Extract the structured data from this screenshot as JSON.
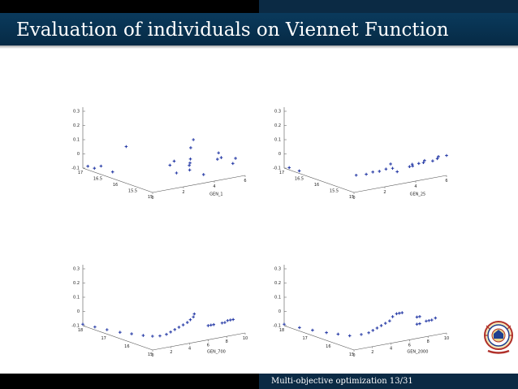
{
  "header": {
    "title": "Evaluation of individuals on Viennet Function"
  },
  "footer": {
    "text": "Multi-objective optimization 13/31"
  },
  "logo": {
    "icon": "institution-seal-icon"
  },
  "colors": {
    "marker": "#2b3fa8",
    "title_bar": "#0a3a5c"
  },
  "chart_data": [
    {
      "type": "scatter",
      "projection": "3d",
      "xlabel": "GEN_1",
      "x_ticks": [
        "0",
        "2",
        "4",
        "6"
      ],
      "y_ticks": [
        "17",
        "16.5",
        "16",
        "15.5",
        "15"
      ],
      "z_ticks": [
        "0.3",
        "0.2",
        "0.1",
        "0",
        "-0.1"
      ],
      "points": [
        [
          0.1,
          16.9,
          -0.08
        ],
        [
          0.3,
          16.8,
          -0.09
        ],
        [
          0.5,
          16.7,
          -0.07
        ],
        [
          0.8,
          16.5,
          -0.1
        ],
        [
          1.0,
          16.2,
          0.1
        ],
        [
          1.8,
          15.3,
          0.03
        ],
        [
          2.0,
          15.2,
          -0.02
        ],
        [
          2.3,
          15.4,
          0.04
        ],
        [
          2.6,
          15.1,
          0.03
        ],
        [
          2.9,
          15.2,
          0.06
        ],
        [
          3.1,
          15.3,
          0.02
        ],
        [
          3.3,
          15.0,
          -0.04
        ],
        [
          3.6,
          15.5,
          0.1
        ],
        [
          4.2,
          15.0,
          0.05
        ],
        [
          4.5,
          15.1,
          0.08
        ],
        [
          4.9,
          15.2,
          0.03
        ],
        [
          5.2,
          15.0,
          0.0
        ],
        [
          5.6,
          15.1,
          0.02
        ],
        [
          4.0,
          15.6,
          0.14
        ],
        [
          2.4,
          15.0,
          0.01
        ]
      ]
    },
    {
      "type": "scatter",
      "projection": "3d",
      "xlabel": "GEN_25",
      "x_ticks": [
        "0",
        "2",
        "4",
        "6"
      ],
      "y_ticks": [
        "17",
        "16.5",
        "16",
        "15.5",
        "15"
      ],
      "z_ticks": [
        "0.3",
        "0.2",
        "0.1",
        "0",
        "-0.1"
      ],
      "points": [
        [
          0.1,
          16.9,
          -0.09
        ],
        [
          0.3,
          16.7,
          -0.1
        ],
        [
          1.5,
          15.6,
          -0.06
        ],
        [
          1.7,
          15.4,
          -0.04
        ],
        [
          1.9,
          15.3,
          -0.02
        ],
        [
          2.1,
          15.2,
          -0.01
        ],
        [
          2.3,
          15.1,
          0.01
        ],
        [
          2.5,
          15.0,
          0.02
        ],
        [
          2.6,
          15.1,
          0.04
        ],
        [
          2.8,
          15.0,
          -0.01
        ],
        [
          3.6,
          15.0,
          0.01
        ],
        [
          3.8,
          15.0,
          0.01
        ],
        [
          4.0,
          15.1,
          0.01
        ],
        [
          4.2,
          15.0,
          0.02
        ],
        [
          4.5,
          15.0,
          0.02
        ],
        [
          4.8,
          15.1,
          0.02
        ],
        [
          5.1,
          15.0,
          0.02
        ],
        [
          5.4,
          15.0,
          0.03
        ],
        [
          5.7,
          15.1,
          0.03
        ],
        [
          6.0,
          15.0,
          0.04
        ]
      ]
    },
    {
      "type": "scatter",
      "projection": "3d",
      "xlabel": "GEN_700",
      "x_ticks": [
        "0",
        "2",
        "4",
        "6",
        "8",
        "10"
      ],
      "y_ticks": [
        "18",
        "17",
        "16",
        "15"
      ],
      "z_ticks": [
        "0.3",
        "0.2",
        "0.1",
        "0",
        "-0.1"
      ],
      "points": [
        [
          0.0,
          18.0,
          -0.09
        ],
        [
          0.3,
          17.6,
          -0.09
        ],
        [
          0.6,
          17.2,
          -0.09
        ],
        [
          1.0,
          16.8,
          -0.09
        ],
        [
          1.5,
          16.5,
          -0.09
        ],
        [
          2.0,
          16.2,
          -0.09
        ],
        [
          2.5,
          16.0,
          -0.09
        ],
        [
          2.8,
          15.8,
          -0.08
        ],
        [
          3.0,
          15.6,
          -0.06
        ],
        [
          3.2,
          15.5,
          -0.04
        ],
        [
          3.4,
          15.4,
          -0.02
        ],
        [
          3.6,
          15.3,
          0.0
        ],
        [
          3.8,
          15.2,
          0.02
        ],
        [
          4.0,
          15.1,
          0.04
        ],
        [
          4.2,
          15.05,
          0.06
        ],
        [
          4.4,
          15.0,
          0.08
        ],
        [
          4.5,
          15.0,
          0.1
        ],
        [
          6.0,
          15.0,
          0.0
        ],
        [
          6.3,
          15.0,
          0.0
        ],
        [
          6.6,
          15.0,
          0.0
        ],
        [
          7.5,
          15.0,
          0.0
        ],
        [
          7.8,
          15.0,
          0.0
        ],
        [
          8.1,
          15.0,
          0.01
        ],
        [
          8.4,
          15.0,
          0.01
        ],
        [
          8.7,
          15.0,
          0.01
        ]
      ]
    },
    {
      "type": "scatter",
      "projection": "3d",
      "xlabel": "GEN_2000",
      "x_ticks": [
        "0",
        "2",
        "4",
        "6",
        "8",
        "10"
      ],
      "y_ticks": [
        "18",
        "17",
        "16",
        "15"
      ],
      "z_ticks": [
        "0.3",
        "0.2",
        "0.1",
        "0",
        "-0.1"
      ],
      "points": [
        [
          0.0,
          18.0,
          -0.09
        ],
        [
          0.4,
          17.5,
          -0.09
        ],
        [
          0.8,
          17.1,
          -0.09
        ],
        [
          1.3,
          16.7,
          -0.09
        ],
        [
          1.8,
          16.4,
          -0.09
        ],
        [
          2.3,
          16.1,
          -0.09
        ],
        [
          2.8,
          15.8,
          -0.07
        ],
        [
          3.1,
          15.6,
          -0.05
        ],
        [
          3.3,
          15.5,
          -0.03
        ],
        [
          3.5,
          15.4,
          -0.01
        ],
        [
          3.7,
          15.3,
          0.01
        ],
        [
          3.9,
          15.2,
          0.03
        ],
        [
          4.1,
          15.1,
          0.05
        ],
        [
          4.3,
          15.05,
          0.08
        ],
        [
          4.6,
          15.0,
          0.1
        ],
        [
          4.9,
          15.0,
          0.1
        ],
        [
          5.2,
          15.0,
          0.1
        ],
        [
          6.8,
          15.0,
          0.05
        ],
        [
          6.8,
          15.0,
          0.0
        ],
        [
          7.1,
          15.0,
          0.05
        ],
        [
          7.1,
          15.0,
          0.0
        ],
        [
          7.8,
          15.0,
          0.01
        ],
        [
          8.1,
          15.0,
          0.01
        ],
        [
          8.4,
          15.0,
          0.01
        ],
        [
          8.8,
          15.0,
          0.02
        ]
      ]
    }
  ]
}
